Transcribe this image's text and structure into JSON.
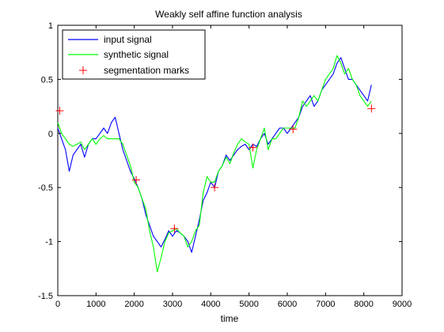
{
  "chart_data": {
    "type": "line",
    "title": "Weakly self affine function analysis",
    "xlabel": "time",
    "ylabel": "",
    "xlim": [
      0,
      9000
    ],
    "ylim": [
      -1.5,
      1
    ],
    "xticks": [
      0,
      1000,
      2000,
      3000,
      4000,
      5000,
      6000,
      7000,
      8000,
      9000
    ],
    "xtick_labels": [
      "0",
      "1000",
      "2000",
      "3000",
      "4000",
      "5000",
      "6000",
      "7000",
      "8000",
      "9000"
    ],
    "yticks": [
      1,
      0.5,
      0,
      -0.5,
      -1,
      -1.5
    ],
    "ytick_labels": [
      "1",
      "0.5",
      "0",
      "-0.5",
      "-1",
      "-1.5"
    ],
    "grid": false,
    "legend_position": "top-left",
    "series": [
      {
        "name": "input signal",
        "color": "#0000ff",
        "style": "line",
        "x": [
          0,
          100,
          200,
          300,
          400,
          500,
          600,
          700,
          800,
          900,
          1000,
          1100,
          1200,
          1300,
          1400,
          1500,
          1600,
          1700,
          1800,
          1900,
          2000,
          2100,
          2200,
          2300,
          2400,
          2500,
          2600,
          2700,
          2800,
          2900,
          3000,
          3100,
          3200,
          3300,
          3400,
          3500,
          3600,
          3700,
          3800,
          3900,
          4000,
          4100,
          4200,
          4300,
          4400,
          4500,
          4600,
          4700,
          4800,
          4900,
          5000,
          5100,
          5200,
          5300,
          5400,
          5500,
          5600,
          5700,
          5800,
          5900,
          6000,
          6100,
          6200,
          6300,
          6400,
          6500,
          6600,
          6700,
          6800,
          6900,
          7000,
          7100,
          7200,
          7300,
          7400,
          7500,
          7600,
          7700,
          7800,
          7900,
          8000,
          8100,
          8200
        ],
        "y": [
          0.05,
          -0.05,
          -0.15,
          -0.35,
          -0.2,
          -0.15,
          -0.1,
          -0.22,
          -0.1,
          -0.05,
          -0.05,
          0.0,
          0.05,
          0.0,
          0.1,
          0.15,
          0.0,
          -0.15,
          -0.25,
          -0.35,
          -0.42,
          -0.5,
          -0.6,
          -0.75,
          -0.85,
          -0.95,
          -1.0,
          -1.05,
          -0.98,
          -0.9,
          -0.95,
          -0.9,
          -0.92,
          -0.95,
          -1.0,
          -1.1,
          -0.95,
          -0.8,
          -0.62,
          -0.55,
          -0.45,
          -0.5,
          -0.35,
          -0.3,
          -0.2,
          -0.25,
          -0.2,
          -0.15,
          -0.12,
          -0.1,
          -0.15,
          -0.1,
          -0.12,
          -0.05,
          0.0,
          -0.1,
          -0.05,
          0.0,
          0.05,
          0.05,
          0.0,
          0.05,
          0.1,
          0.15,
          0.25,
          0.3,
          0.35,
          0.25,
          0.3,
          0.4,
          0.45,
          0.5,
          0.55,
          0.65,
          0.7,
          0.6,
          0.5,
          0.5,
          0.45,
          0.4,
          0.35,
          0.3,
          0.45
        ]
      },
      {
        "name": "synthetic signal",
        "color": "#00ff00",
        "style": "line",
        "x": [
          0,
          100,
          200,
          300,
          400,
          500,
          600,
          700,
          800,
          900,
          1000,
          1100,
          1200,
          1300,
          1400,
          1500,
          1600,
          1700,
          1800,
          1900,
          2000,
          2100,
          2200,
          2300,
          2400,
          2500,
          2600,
          2700,
          2800,
          2900,
          3000,
          3100,
          3200,
          3300,
          3400,
          3500,
          3600,
          3700,
          3800,
          3900,
          4000,
          4100,
          4200,
          4300,
          4400,
          4500,
          4600,
          4700,
          4800,
          4900,
          5000,
          5100,
          5200,
          5300,
          5400,
          5500,
          5600,
          5700,
          5800,
          5900,
          6000,
          6100,
          6200,
          6300,
          6400,
          6500,
          6600,
          6700,
          6800,
          6900,
          7000,
          7100,
          7200,
          7300,
          7400,
          7500,
          7600,
          7700,
          7800,
          7900,
          8000,
          8100,
          8200
        ],
        "y": [
          0.1,
          0.0,
          -0.05,
          -0.1,
          -0.12,
          -0.1,
          -0.08,
          -0.15,
          -0.1,
          -0.05,
          -0.1,
          -0.05,
          -0.02,
          -0.05,
          -0.05,
          -0.05,
          -0.05,
          -0.1,
          -0.2,
          -0.3,
          -0.45,
          -0.5,
          -0.6,
          -0.7,
          -0.9,
          -1.05,
          -1.28,
          -1.15,
          -1.0,
          -0.92,
          -0.9,
          -0.88,
          -0.92,
          -0.95,
          -1.05,
          -1.0,
          -0.9,
          -0.85,
          -0.55,
          -0.4,
          -0.45,
          -0.45,
          -0.35,
          -0.3,
          -0.22,
          -0.28,
          -0.18,
          -0.1,
          -0.05,
          -0.08,
          -0.1,
          -0.32,
          -0.15,
          -0.05,
          0.05,
          -0.15,
          -0.05,
          -0.05,
          0.0,
          0.05,
          0.05,
          0.05,
          0.05,
          0.15,
          0.3,
          0.25,
          0.3,
          0.35,
          0.3,
          0.4,
          0.5,
          0.55,
          0.6,
          0.72,
          0.65,
          0.55,
          0.6,
          0.5,
          0.45,
          0.35,
          0.3,
          0.25,
          0.3
        ]
      },
      {
        "name": "segmentation marks",
        "color": "#ff0000",
        "style": "marker",
        "marker": "plus",
        "x": [
          50,
          2050,
          3050,
          4100,
          5100,
          6150,
          8200
        ],
        "y": [
          0.21,
          -0.43,
          -0.88,
          -0.5,
          -0.13,
          0.04,
          0.23
        ]
      }
    ]
  }
}
